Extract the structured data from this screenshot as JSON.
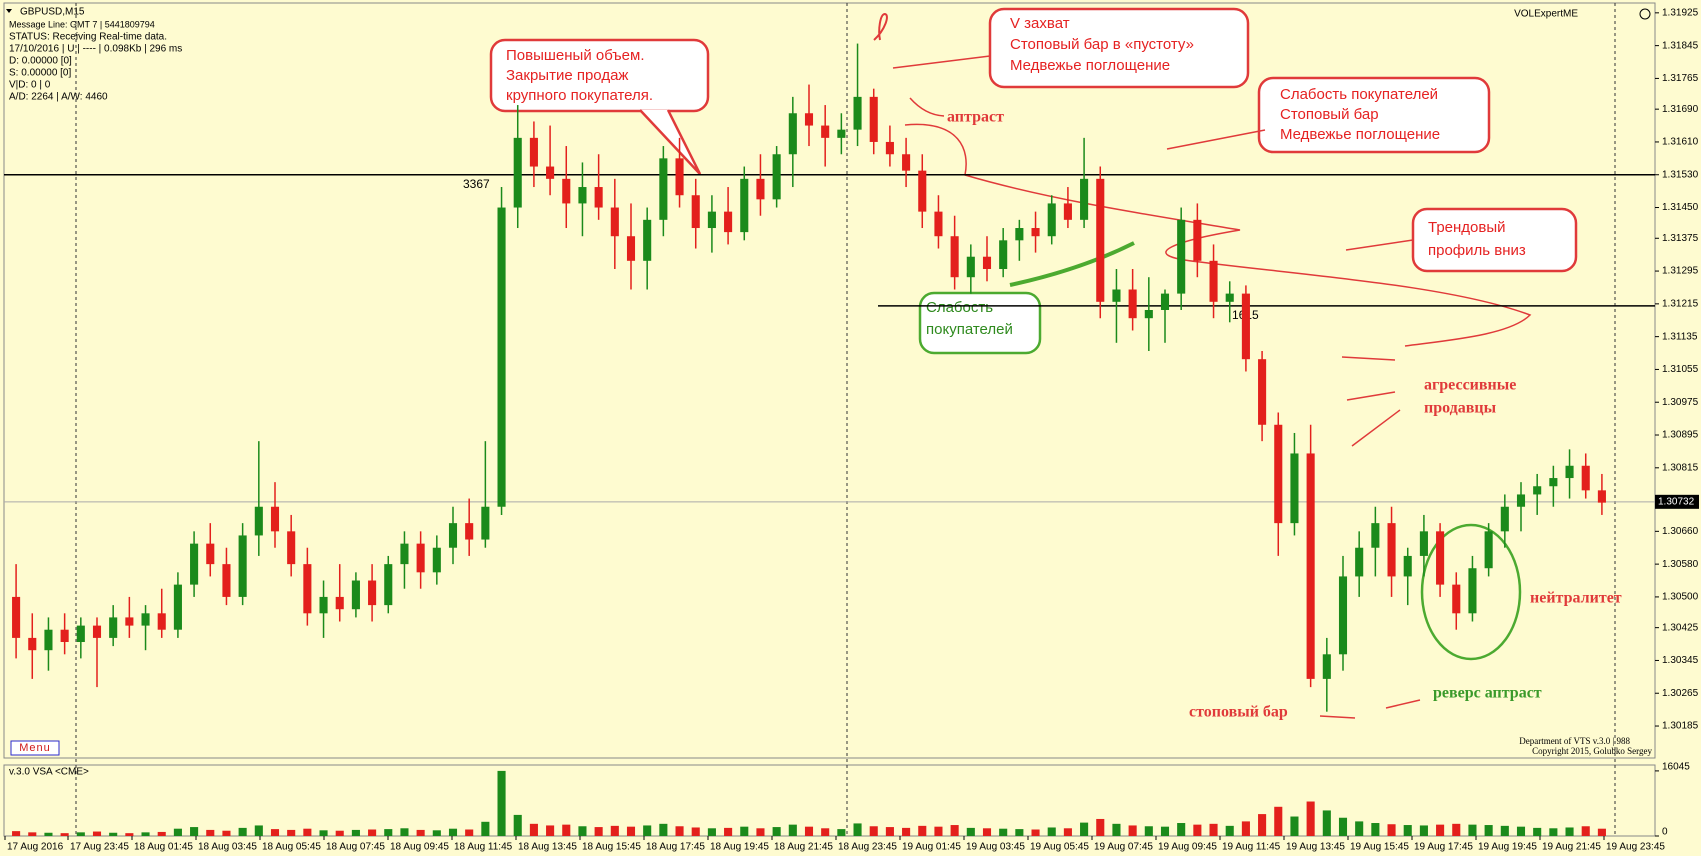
{
  "chart_data": {
    "type": "candlestick",
    "symbol": "GBPUSD,M15",
    "info": [
      "Message Line: GMT 7 | 5441809794",
      "STATUS:  Receiving Real-time data.",
      "17/10/2016 | U | ---- | 0.098Kb | 296 ms",
      "D: 0.00000  [0]",
      "S: 0.00000  [0]",
      "V|D: 0 | 0",
      "A/D: 2264 | A/W: 4460"
    ],
    "indicator": "VOLExpertME",
    "menu": "Menu",
    "volume_title": "v.3.0 VSA <CME>",
    "footer": [
      "Department of VTS  v.3.0 | 988",
      "Copyright 2015, Golubko Sergey"
    ],
    "up_color": "#1b8a1b",
    "down_color": "#e3201c",
    "ylim": [
      1.30107,
      1.31949
    ],
    "yticks": [
      1.31925,
      1.31845,
      1.31765,
      {
        "value": 1.3169,
        "label": "1.31690"
      },
      {
        "value": 1.3161,
        "label": "1.31610"
      },
      {
        "value": 1.3153,
        "label": "1.31530"
      },
      {
        "value": 1.3145,
        "label": "1.31450"
      },
      1.31375,
      1.31295,
      1.31215,
      1.31135,
      1.31055,
      1.30975,
      1.30895,
      1.30815,
      {
        "value": 1.3066,
        "label": "1.30660"
      },
      {
        "value": 1.3058,
        "label": "1.30580"
      },
      {
        "value": 1.305,
        "label": "1.30500"
      },
      1.30425,
      1.30345,
      1.30265,
      1.30185
    ],
    "current_price": 1.30732,
    "levels": [
      1.3153,
      1.3121
    ],
    "level_volumes": [
      3367,
      1615
    ],
    "vlim": [
      0,
      17500
    ],
    "vticks": [
      0,
      16045
    ],
    "categories": [
      "17 Aug 2016",
      "17 Aug 23:45",
      "18 Aug 01:45",
      "18 Aug 03:45",
      "18 Aug 05:45",
      "18 Aug 07:45",
      "18 Aug 09:45",
      "18 Aug 11:45",
      "18 Aug 13:45",
      "18 Aug 15:45",
      "18 Aug 17:45",
      "18 Aug 19:45",
      "18 Aug 21:45",
      "18 Aug 23:45",
      "19 Aug 01:45",
      "19 Aug 03:45",
      "19 Aug 05:45",
      "19 Aug 07:45",
      "19 Aug 09:45",
      "19 Aug 11:45",
      "19 Aug 13:45",
      "19 Aug 15:45",
      "19 Aug 17:45",
      "19 Aug 19:45",
      "19 Aug 21:45",
      "19 Aug 23:45"
    ],
    "candles": [
      [
        1.305,
        1.3058,
        1.3035,
        1.304
      ],
      [
        1.304,
        1.3046,
        1.303,
        1.3037
      ],
      [
        1.3037,
        1.3045,
        1.3032,
        1.3042
      ],
      [
        1.3042,
        1.3046,
        1.3036,
        1.3039
      ],
      [
        1.3039,
        1.3045,
        1.3035,
        1.3043
      ],
      [
        1.3043,
        1.3045,
        1.3028,
        1.304
      ],
      [
        1.304,
        1.3048,
        1.3038,
        1.3045
      ],
      [
        1.3045,
        1.305,
        1.304,
        1.3043
      ],
      [
        1.3043,
        1.3048,
        1.3037,
        1.3046
      ],
      [
        1.3046,
        1.3052,
        1.304,
        1.3042
      ],
      [
        1.3042,
        1.3056,
        1.304,
        1.3053
      ],
      [
        1.3053,
        1.3066,
        1.305,
        1.3063
      ],
      [
        1.3063,
        1.3068,
        1.3055,
        1.3058
      ],
      [
        1.3058,
        1.3062,
        1.3048,
        1.305
      ],
      [
        1.305,
        1.3068,
        1.3048,
        1.3065
      ],
      [
        1.3065,
        1.3088,
        1.306,
        1.3072
      ],
      [
        1.3072,
        1.3078,
        1.3062,
        1.3066
      ],
      [
        1.3066,
        1.307,
        1.3055,
        1.3058
      ],
      [
        1.3058,
        1.3062,
        1.3043,
        1.3046
      ],
      [
        1.3046,
        1.3054,
        1.304,
        1.305
      ],
      [
        1.305,
        1.3058,
        1.3044,
        1.3047
      ],
      [
        1.3047,
        1.3056,
        1.3045,
        1.3054
      ],
      [
        1.3054,
        1.3058,
        1.3044,
        1.3048
      ],
      [
        1.3048,
        1.306,
        1.3046,
        1.3058
      ],
      [
        1.3058,
        1.3066,
        1.3052,
        1.3063
      ],
      [
        1.3063,
        1.3066,
        1.3052,
        1.3056
      ],
      [
        1.3056,
        1.3065,
        1.3053,
        1.3062
      ],
      [
        1.3062,
        1.3072,
        1.3058,
        1.3068
      ],
      [
        1.3068,
        1.3074,
        1.306,
        1.3064
      ],
      [
        1.3064,
        1.3088,
        1.3062,
        1.3072
      ],
      [
        1.3072,
        1.315,
        1.307,
        1.3145
      ],
      [
        1.3145,
        1.317,
        1.314,
        1.3162
      ],
      [
        1.3162,
        1.3166,
        1.315,
        1.3155
      ],
      [
        1.3155,
        1.3165,
        1.3148,
        1.3152
      ],
      [
        1.3152,
        1.316,
        1.314,
        1.3146
      ],
      [
        1.3146,
        1.3156,
        1.3138,
        1.315
      ],
      [
        1.315,
        1.3158,
        1.3142,
        1.3145
      ],
      [
        1.3145,
        1.3152,
        1.313,
        1.3138
      ],
      [
        1.3138,
        1.3146,
        1.3125,
        1.3132
      ],
      [
        1.3132,
        1.3145,
        1.3125,
        1.3142
      ],
      [
        1.3142,
        1.316,
        1.3138,
        1.3157
      ],
      [
        1.3157,
        1.3162,
        1.3145,
        1.3148
      ],
      [
        1.3148,
        1.3152,
        1.3135,
        1.314
      ],
      [
        1.314,
        1.3148,
        1.3134,
        1.3144
      ],
      [
        1.3144,
        1.315,
        1.3136,
        1.3139
      ],
      [
        1.3139,
        1.3155,
        1.3137,
        1.3152
      ],
      [
        1.3152,
        1.3158,
        1.3143,
        1.3147
      ],
      [
        1.3147,
        1.316,
        1.3145,
        1.3158
      ],
      [
        1.3158,
        1.3172,
        1.315,
        1.3168
      ],
      [
        1.3168,
        1.3175,
        1.316,
        1.3165
      ],
      [
        1.3165,
        1.317,
        1.3155,
        1.3162
      ],
      [
        1.3162,
        1.3168,
        1.3158,
        1.3164
      ],
      [
        1.3164,
        1.3185,
        1.316,
        1.3172
      ],
      [
        1.3172,
        1.3174,
        1.3158,
        1.3161
      ],
      [
        1.3161,
        1.3165,
        1.3155,
        1.3158
      ],
      [
        1.3158,
        1.3162,
        1.315,
        1.3154
      ],
      [
        1.3154,
        1.3158,
        1.314,
        1.3144
      ],
      [
        1.3144,
        1.3148,
        1.3135,
        1.3138
      ],
      [
        1.3138,
        1.3143,
        1.3125,
        1.3128
      ],
      [
        1.3128,
        1.3136,
        1.3124,
        1.3133
      ],
      [
        1.3133,
        1.3138,
        1.3127,
        1.313
      ],
      [
        1.313,
        1.314,
        1.3128,
        1.3137
      ],
      [
        1.3137,
        1.3142,
        1.3132,
        1.314
      ],
      [
        1.314,
        1.3144,
        1.3134,
        1.3138
      ],
      [
        1.3138,
        1.3148,
        1.3136,
        1.3146
      ],
      [
        1.3146,
        1.315,
        1.314,
        1.3142
      ],
      [
        1.3142,
        1.3162,
        1.314,
        1.3152
      ],
      [
        1.3152,
        1.3155,
        1.3118,
        1.3122
      ],
      [
        1.3122,
        1.313,
        1.3112,
        1.3125
      ],
      [
        1.3125,
        1.313,
        1.3115,
        1.3118
      ],
      [
        1.3118,
        1.3128,
        1.311,
        1.312
      ],
      [
        1.312,
        1.3125,
        1.3112,
        1.3124
      ],
      [
        1.3124,
        1.3145,
        1.312,
        1.3142
      ],
      [
        1.3142,
        1.3146,
        1.3128,
        1.3132
      ],
      [
        1.3132,
        1.3136,
        1.3118,
        1.3122
      ],
      [
        1.3122,
        1.3127,
        1.3117,
        1.3124
      ],
      [
        1.3124,
        1.3126,
        1.3105,
        1.3108
      ],
      [
        1.3108,
        1.311,
        1.3088,
        1.3092
      ],
      [
        1.3092,
        1.3095,
        1.306,
        1.3068
      ],
      [
        1.3068,
        1.309,
        1.3065,
        1.3085
      ],
      [
        1.3085,
        1.3092,
        1.3028,
        1.303
      ],
      [
        1.303,
        1.304,
        1.3022,
        1.3036
      ],
      [
        1.3036,
        1.306,
        1.3032,
        1.3055
      ],
      [
        1.3055,
        1.3066,
        1.305,
        1.3062
      ],
      [
        1.3062,
        1.3072,
        1.3055,
        1.3068
      ],
      [
        1.3068,
        1.3072,
        1.305,
        1.3055
      ],
      [
        1.3055,
        1.3062,
        1.3048,
        1.306
      ],
      [
        1.306,
        1.307,
        1.3055,
        1.3066
      ],
      [
        1.3066,
        1.3068,
        1.305,
        1.3053
      ],
      [
        1.3053,
        1.3056,
        1.3042,
        1.3046
      ],
      [
        1.3046,
        1.306,
        1.3044,
        1.3057
      ],
      [
        1.3057,
        1.3068,
        1.3055,
        1.3066
      ],
      [
        1.3066,
        1.3075,
        1.3062,
        1.3072
      ],
      [
        1.3072,
        1.3078,
        1.3066,
        1.3075
      ],
      [
        1.3075,
        1.308,
        1.307,
        1.3077
      ],
      [
        1.3077,
        1.3082,
        1.3072,
        1.3079
      ],
      [
        1.3079,
        1.3086,
        1.3074,
        1.3082
      ],
      [
        1.3082,
        1.3085,
        1.3074,
        1.3076
      ],
      [
        1.3076,
        1.308,
        1.307,
        1.3073
      ]
    ],
    "volume": [
      1200,
      900,
      800,
      700,
      900,
      1100,
      800,
      700,
      900,
      1000,
      1800,
      2200,
      1500,
      1300,
      2000,
      2600,
      1700,
      1500,
      1800,
      1400,
      1300,
      1500,
      1600,
      1700,
      1900,
      1500,
      1400,
      1800,
      1600,
      3500,
      16045,
      5200,
      3000,
      2600,
      2800,
      2400,
      2200,
      2500,
      2300,
      2600,
      3000,
      2400,
      2100,
      1900,
      2000,
      2300,
      1900,
      2200,
      2800,
      2300,
      1900,
      1700,
      3100,
      2400,
      2200,
      2000,
      2500,
      2300,
      2700,
      2000,
      1900,
      1800,
      1700,
      1600,
      2100,
      1900,
      3300,
      4200,
      3000,
      2600,
      2400,
      2300,
      3200,
      2800,
      3000,
      2500,
      3600,
      5400,
      7200,
      4800,
      8500,
      6300,
      4500,
      3600,
      3200,
      2900,
      2700,
      2600,
      2800,
      3000,
      2800,
      2700,
      2500,
      2300,
      2000,
      1900,
      2100,
      2400,
      1800
    ],
    "annotations": [
      {
        "kind": "box",
        "lines": [
          "Повышеный объем.",
          "Закрытие продаж",
          "крупного покупателя."
        ]
      },
      {
        "kind": "box",
        "lines": [
          "V захват",
          "Стоповый бар в «пустоту»",
          "Медвежье поглощение"
        ]
      },
      {
        "kind": "box",
        "lines": [
          "Слабость покупателей",
          "Стоповый бар",
          "Медвежье поглощение"
        ]
      },
      {
        "kind": "box",
        "lines": [
          "Трендовый",
          "профиль вниз"
        ]
      },
      {
        "kind": "green-box",
        "lines": [
          "Слабость",
          "покупателей"
        ]
      },
      {
        "kind": "label",
        "lines": [
          "аптраст"
        ]
      },
      {
        "kind": "label",
        "lines": [
          "агрессивные",
          "продавцы"
        ]
      },
      {
        "kind": "label",
        "lines": [
          "нейтралитет"
        ]
      },
      {
        "kind": "label",
        "lines": [
          "стоповый бар"
        ]
      },
      {
        "kind": "green-label",
        "lines": [
          "реверс аптраст"
        ]
      }
    ]
  }
}
